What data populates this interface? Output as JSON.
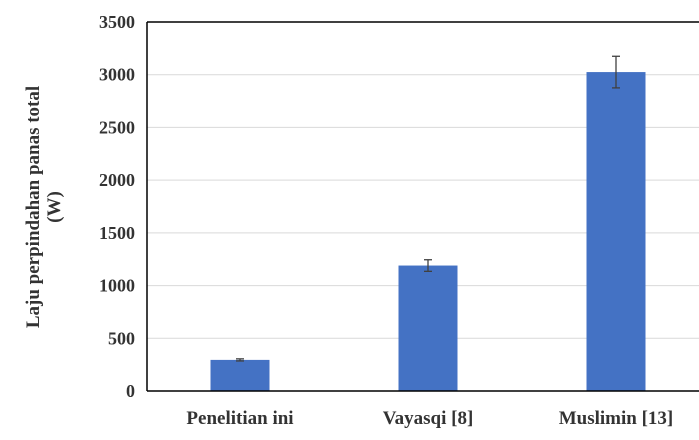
{
  "chart_data": {
    "type": "bar",
    "title": "",
    "xlabel": "",
    "ylabel_lines": [
      "Laju perpindahan panas total",
      "(W)"
    ],
    "categories": [
      "Penelitian ini",
      "Vayasqi [8]",
      "Muslimin [13]"
    ],
    "values": [
      295,
      1190,
      3025
    ],
    "error": [
      10,
      55,
      150
    ],
    "ylim": [
      0,
      3500
    ],
    "yticks": [
      0,
      500,
      1000,
      1500,
      2000,
      2500,
      3000,
      3500
    ],
    "grid": true,
    "legend": "none",
    "bar_color": "#4472c4",
    "gridline_color": "#d9d9d9",
    "axis_color": "#000000"
  }
}
